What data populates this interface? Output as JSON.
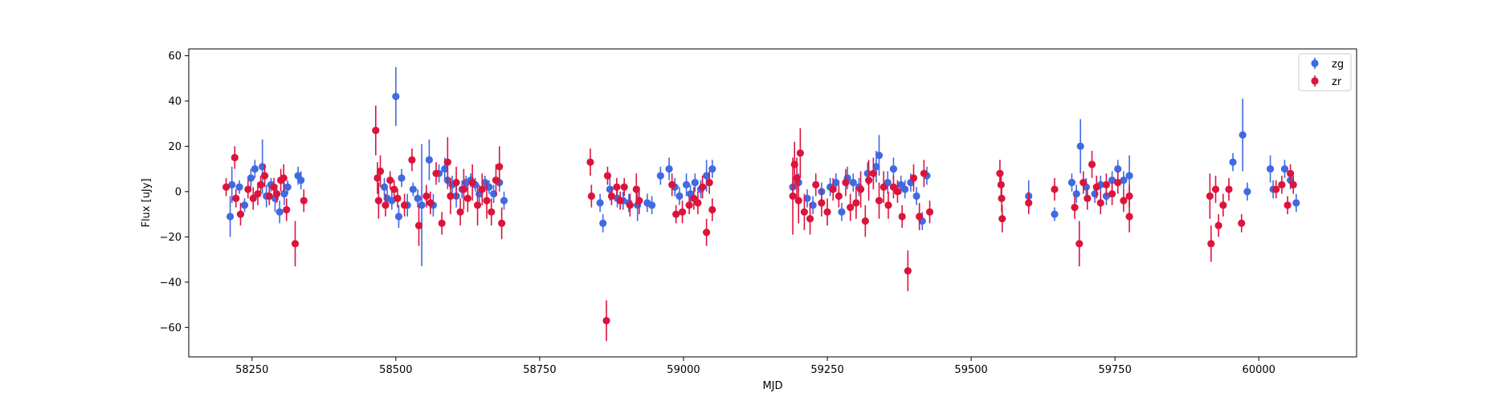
{
  "chart_data": {
    "type": "scatter",
    "xlabel": "MJD",
    "ylabel": "Flux [uJy]",
    "xlim": [
      58140,
      60170
    ],
    "ylim": [
      -73,
      63
    ],
    "xticks": [
      58250,
      58500,
      58750,
      59000,
      59250,
      59500,
      59750,
      60000
    ],
    "yticks": [
      -60,
      -40,
      -20,
      0,
      20,
      40,
      60
    ],
    "grid": false,
    "legend_position": "top-right",
    "colors": {
      "zg": "#4169e1",
      "zr": "#dc143c"
    },
    "series": [
      {
        "name": "zg",
        "color": "#4169e1",
        "points": [
          [
            58212,
            -11,
            9
          ],
          [
            58215,
            3,
            8
          ],
          [
            58228,
            2,
            3
          ],
          [
            58237,
            -6,
            3
          ],
          [
            58248,
            6,
            4
          ],
          [
            58255,
            10,
            4
          ],
          [
            58268,
            11,
            12
          ],
          [
            58275,
            -2,
            5
          ],
          [
            58283,
            3,
            3
          ],
          [
            58290,
            -3,
            6
          ],
          [
            58298,
            -9,
            5
          ],
          [
            58306,
            -1,
            5
          ],
          [
            58312,
            2,
            3
          ],
          [
            58330,
            7,
            4
          ],
          [
            58335,
            5,
            4
          ],
          [
            58480,
            2,
            4
          ],
          [
            58485,
            -3,
            4
          ],
          [
            58493,
            -4,
            4
          ],
          [
            58500,
            42,
            13
          ],
          [
            58505,
            -11,
            5
          ],
          [
            58510,
            6,
            4
          ],
          [
            58520,
            -6,
            5
          ],
          [
            58530,
            1,
            3
          ],
          [
            58538,
            -3,
            4
          ],
          [
            58545,
            -6,
            27
          ],
          [
            58558,
            14,
            9
          ],
          [
            58565,
            -6,
            5
          ],
          [
            58575,
            8,
            4
          ],
          [
            58585,
            10,
            5
          ],
          [
            58590,
            5,
            4
          ],
          [
            58598,
            3,
            4
          ],
          [
            58605,
            -2,
            5
          ],
          [
            58615,
            1,
            4
          ],
          [
            58622,
            4,
            3
          ],
          [
            58630,
            5,
            3
          ],
          [
            58638,
            3,
            3
          ],
          [
            58645,
            -1,
            4
          ],
          [
            58655,
            4,
            3
          ],
          [
            58662,
            2,
            3
          ],
          [
            58670,
            -1,
            4
          ],
          [
            58680,
            4,
            4
          ],
          [
            58688,
            -4,
            4
          ],
          [
            58855,
            -5,
            4
          ],
          [
            58860,
            -14,
            4
          ],
          [
            58872,
            1,
            5
          ],
          [
            58885,
            -3,
            4
          ],
          [
            58895,
            -4,
            4
          ],
          [
            58905,
            -5,
            4
          ],
          [
            58920,
            -6,
            7
          ],
          [
            58937,
            -5,
            4
          ],
          [
            58945,
            -6,
            4
          ],
          [
            58960,
            7,
            4
          ],
          [
            58975,
            10,
            5
          ],
          [
            58985,
            2,
            4
          ],
          [
            58993,
            -2,
            4
          ],
          [
            59005,
            3,
            5
          ],
          [
            59012,
            -1,
            4
          ],
          [
            59020,
            4,
            4
          ],
          [
            59030,
            1,
            4
          ],
          [
            59040,
            7,
            7
          ],
          [
            59050,
            10,
            4
          ],
          [
            59190,
            2,
            4
          ],
          [
            59200,
            4,
            4
          ],
          [
            59215,
            -3,
            4
          ],
          [
            59225,
            -6,
            4
          ],
          [
            59240,
            0,
            4
          ],
          [
            59255,
            2,
            4
          ],
          [
            59265,
            4,
            4
          ],
          [
            59275,
            -9,
            4
          ],
          [
            59285,
            6,
            5
          ],
          [
            59295,
            4,
            4
          ],
          [
            59305,
            2,
            4
          ],
          [
            59320,
            8,
            5
          ],
          [
            59335,
            11,
            7
          ],
          [
            59340,
            16,
            9
          ],
          [
            59355,
            4,
            5
          ],
          [
            59365,
            10,
            5
          ],
          [
            59378,
            3,
            4
          ],
          [
            59385,
            1,
            4
          ],
          [
            59395,
            4,
            4
          ],
          [
            59405,
            -2,
            4
          ],
          [
            59415,
            -13,
            4
          ],
          [
            59423,
            7,
            4
          ],
          [
            59600,
            -2,
            7
          ],
          [
            59645,
            -10,
            3
          ],
          [
            59675,
            4,
            4
          ],
          [
            59683,
            -1,
            4
          ],
          [
            59690,
            20,
            12
          ],
          [
            59700,
            2,
            4
          ],
          [
            59715,
            -1,
            4
          ],
          [
            59725,
            3,
            4
          ],
          [
            59735,
            -2,
            4
          ],
          [
            59745,
            5,
            4
          ],
          [
            59755,
            10,
            4
          ],
          [
            59765,
            5,
            4
          ],
          [
            59775,
            7,
            9
          ],
          [
            59955,
            13,
            4
          ],
          [
            59972,
            25,
            16
          ],
          [
            59980,
            0,
            4
          ],
          [
            60020,
            10,
            6
          ],
          [
            60025,
            1,
            4
          ],
          [
            60045,
            10,
            4
          ],
          [
            60055,
            5,
            4
          ],
          [
            60065,
            -5,
            4
          ]
        ]
      },
      {
        "name": "zr",
        "color": "#dc143c",
        "points": [
          [
            58205,
            2,
            4
          ],
          [
            58220,
            15,
            5
          ],
          [
            58222,
            -3,
            4
          ],
          [
            58230,
            -10,
            5
          ],
          [
            58243,
            1,
            4
          ],
          [
            58252,
            -3,
            5
          ],
          [
            58260,
            -1,
            5
          ],
          [
            58265,
            3,
            4
          ],
          [
            58272,
            7,
            5
          ],
          [
            58280,
            -2,
            4
          ],
          [
            58288,
            2,
            4
          ],
          [
            58293,
            -1,
            4
          ],
          [
            58300,
            5,
            5
          ],
          [
            58305,
            6,
            6
          ],
          [
            58310,
            -8,
            5
          ],
          [
            58325,
            -23,
            10
          ],
          [
            58340,
            -4,
            5
          ],
          [
            58465,
            27,
            11
          ],
          [
            58468,
            6,
            7
          ],
          [
            58470,
            -4,
            8
          ],
          [
            58473,
            9,
            7
          ],
          [
            58482,
            -6,
            5
          ],
          [
            58490,
            5,
            4
          ],
          [
            58497,
            1,
            4
          ],
          [
            58503,
            -3,
            4
          ],
          [
            58515,
            -6,
            5
          ],
          [
            58528,
            14,
            5
          ],
          [
            58540,
            -15,
            9
          ],
          [
            58553,
            -2,
            5
          ],
          [
            58560,
            -5,
            5
          ],
          [
            58570,
            8,
            5
          ],
          [
            58580,
            -14,
            5
          ],
          [
            58590,
            13,
            11
          ],
          [
            58595,
            -2,
            8
          ],
          [
            58605,
            4,
            7
          ],
          [
            58612,
            -9,
            6
          ],
          [
            58618,
            1,
            9
          ],
          [
            58625,
            -3,
            6
          ],
          [
            58633,
            4,
            8
          ],
          [
            58642,
            -6,
            9
          ],
          [
            58650,
            1,
            7
          ],
          [
            58658,
            -4,
            8
          ],
          [
            58666,
            -9,
            6
          ],
          [
            58674,
            5,
            7
          ],
          [
            58680,
            11,
            9
          ],
          [
            58684,
            -14,
            7
          ],
          [
            58838,
            13,
            6
          ],
          [
            58840,
            -2,
            5
          ],
          [
            58868,
            7,
            4
          ],
          [
            58875,
            -2,
            4
          ],
          [
            58884,
            2,
            4
          ],
          [
            58890,
            -4,
            4
          ],
          [
            58897,
            2,
            4
          ],
          [
            58907,
            -6,
            5
          ],
          [
            58918,
            1,
            7
          ],
          [
            58923,
            -4,
            6
          ],
          [
            58980,
            3,
            5
          ],
          [
            58987,
            -10,
            4
          ],
          [
            58998,
            -9,
            5
          ],
          [
            59010,
            -6,
            4
          ],
          [
            59018,
            -3,
            5
          ],
          [
            59025,
            -5,
            5
          ],
          [
            59033,
            2,
            5
          ],
          [
            59040,
            -18,
            6
          ],
          [
            59045,
            4,
            5
          ],
          [
            59050,
            -8,
            5
          ],
          [
            58866,
            -57,
            9
          ],
          [
            59190,
            -2,
            17
          ],
          [
            59193,
            12,
            10
          ],
          [
            59197,
            6,
            9
          ],
          [
            59200,
            -4,
            10
          ],
          [
            59203,
            17,
            11
          ],
          [
            59210,
            -9,
            8
          ],
          [
            59220,
            -12,
            7
          ],
          [
            59230,
            3,
            5
          ],
          [
            59240,
            -5,
            6
          ],
          [
            59250,
            -9,
            6
          ],
          [
            59260,
            1,
            5
          ],
          [
            59270,
            -2,
            5
          ],
          [
            59282,
            4,
            6
          ],
          [
            59290,
            -7,
            6
          ],
          [
            59300,
            -5,
            7
          ],
          [
            59308,
            1,
            8
          ],
          [
            59316,
            -13,
            7
          ],
          [
            59322,
            5,
            9
          ],
          [
            59330,
            8,
            7
          ],
          [
            59340,
            -4,
            8
          ],
          [
            59348,
            2,
            7
          ],
          [
            59356,
            -6,
            6
          ],
          [
            59365,
            2,
            5
          ],
          [
            59372,
            0,
            5
          ],
          [
            59380,
            -11,
            5
          ],
          [
            59390,
            -35,
            9
          ],
          [
            59400,
            6,
            6
          ],
          [
            59410,
            -11,
            6
          ],
          [
            59418,
            8,
            6
          ],
          [
            59428,
            -9,
            5
          ],
          [
            59550,
            8,
            6
          ],
          [
            59552,
            3,
            5
          ],
          [
            59553,
            -3,
            6
          ],
          [
            59554,
            -12,
            6
          ],
          [
            59600,
            -5,
            5
          ],
          [
            59645,
            1,
            5
          ],
          [
            59680,
            -7,
            5
          ],
          [
            59688,
            -23,
            10
          ],
          [
            59695,
            4,
            5
          ],
          [
            59702,
            -3,
            5
          ],
          [
            59710,
            12,
            6
          ],
          [
            59718,
            2,
            5
          ],
          [
            59725,
            -5,
            5
          ],
          [
            59735,
            3,
            5
          ],
          [
            59745,
            -1,
            5
          ],
          [
            59755,
            4,
            5
          ],
          [
            59765,
            -4,
            5
          ],
          [
            59775,
            -11,
            7
          ],
          [
            59775,
            -2,
            5
          ],
          [
            59915,
            -2,
            10
          ],
          [
            59917,
            -23,
            8
          ],
          [
            59925,
            1,
            6
          ],
          [
            59930,
            -15,
            5
          ],
          [
            59938,
            -6,
            5
          ],
          [
            59948,
            1,
            5
          ],
          [
            59970,
            -14,
            4
          ],
          [
            60030,
            1,
            4
          ],
          [
            60040,
            3,
            4
          ],
          [
            60050,
            -6,
            4
          ],
          [
            60055,
            8,
            4
          ],
          [
            60060,
            3,
            4
          ]
        ]
      }
    ]
  }
}
